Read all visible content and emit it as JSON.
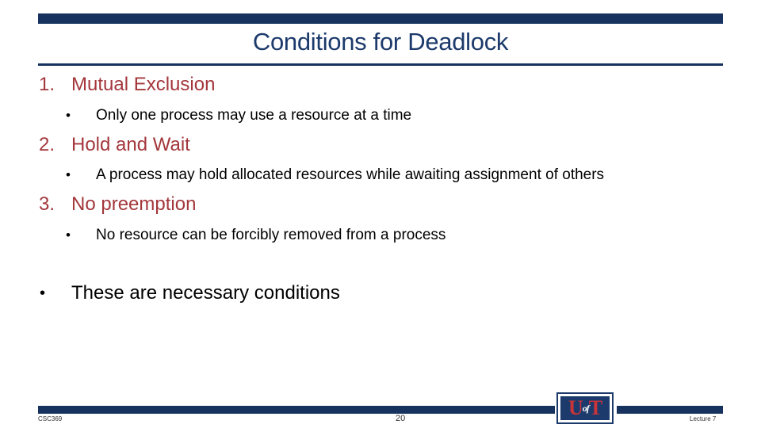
{
  "slide": {
    "title": "Conditions for Deadlock",
    "conditions": [
      {
        "number": "1.",
        "heading": "Mutual Exclusion",
        "detail": "Only one process may use a resource at a time"
      },
      {
        "number": "2.",
        "heading": "Hold and Wait",
        "detail": "A process may hold allocated resources while awaiting assignment of others"
      },
      {
        "number": "3.",
        "heading": "No preemption",
        "detail": "No resource can be forcibly removed from a process"
      }
    ],
    "bullet_glyph": "•",
    "summary": "These are necessary conditions"
  },
  "footer": {
    "course": "CSC369",
    "page_number": "20",
    "lecture": "Lecture 7"
  },
  "logo": {
    "letter_u": "U",
    "letters_of": "of",
    "letter_t": "T"
  },
  "colors": {
    "navy": "#17325e",
    "title_blue": "#1c3a6b",
    "heading_red": "#a3373c"
  }
}
